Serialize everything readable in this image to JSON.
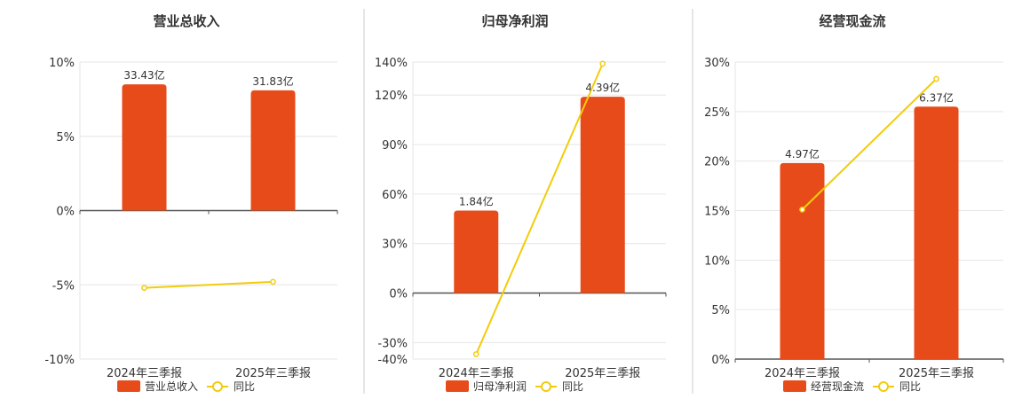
{
  "colors": {
    "bar": "#E84B1A",
    "line": "#F2CC0C",
    "grid": "#E6E6E6",
    "axis": "#555555",
    "divider": "#CCCCCC"
  },
  "chart_data": [
    {
      "type": "bar",
      "title": "营业总收入",
      "categories": [
        "2024年三季报",
        "2025年三季报"
      ],
      "ylim": [
        -10,
        10
      ],
      "yticks": [
        10,
        5,
        0,
        -5,
        -10
      ],
      "ytick_labels": [
        "10%",
        "5%",
        "0%",
        "-5%",
        "-10%"
      ],
      "series": [
        {
          "name": "营业总收入",
          "kind": "bar",
          "values": [
            8.5,
            8.1
          ],
          "labels": [
            "33.43亿",
            "31.83亿"
          ]
        },
        {
          "name": "同比",
          "kind": "line",
          "values": [
            -5.2,
            -4.8
          ]
        }
      ],
      "grid": true,
      "legend": "bottom-center"
    },
    {
      "type": "bar",
      "title": "归母净利润",
      "categories": [
        "2024年三季报",
        "2025年三季报"
      ],
      "ylim": [
        -40,
        140
      ],
      "yticks": [
        140,
        120,
        90,
        60,
        30,
        0,
        -30,
        -40
      ],
      "ytick_labels": [
        "140%",
        "120%",
        "90%",
        "60%",
        "30%",
        "0%",
        "-30%",
        "-40%"
      ],
      "series": [
        {
          "name": "归母净利润",
          "kind": "bar",
          "values": [
            50,
            119
          ],
          "labels": [
            "1.84亿",
            "4.39亿"
          ]
        },
        {
          "name": "同比",
          "kind": "line",
          "values": [
            -37,
            139
          ]
        }
      ],
      "grid": true,
      "legend": "bottom-center"
    },
    {
      "type": "bar",
      "title": "经营现金流",
      "categories": [
        "2024年三季报",
        "2025年三季报"
      ],
      "ylim": [
        0,
        30
      ],
      "yticks": [
        30,
        25,
        20,
        15,
        10,
        5,
        0
      ],
      "ytick_labels": [
        "30%",
        "25%",
        "20%",
        "15%",
        "10%",
        "5%",
        "0%"
      ],
      "series": [
        {
          "name": "经营现金流",
          "kind": "bar",
          "values": [
            19.8,
            25.5
          ],
          "labels": [
            "4.97亿",
            "6.37亿"
          ]
        },
        {
          "name": "同比",
          "kind": "line",
          "values": [
            15.1,
            28.3
          ]
        }
      ],
      "grid": true,
      "legend": "bottom-center"
    }
  ]
}
